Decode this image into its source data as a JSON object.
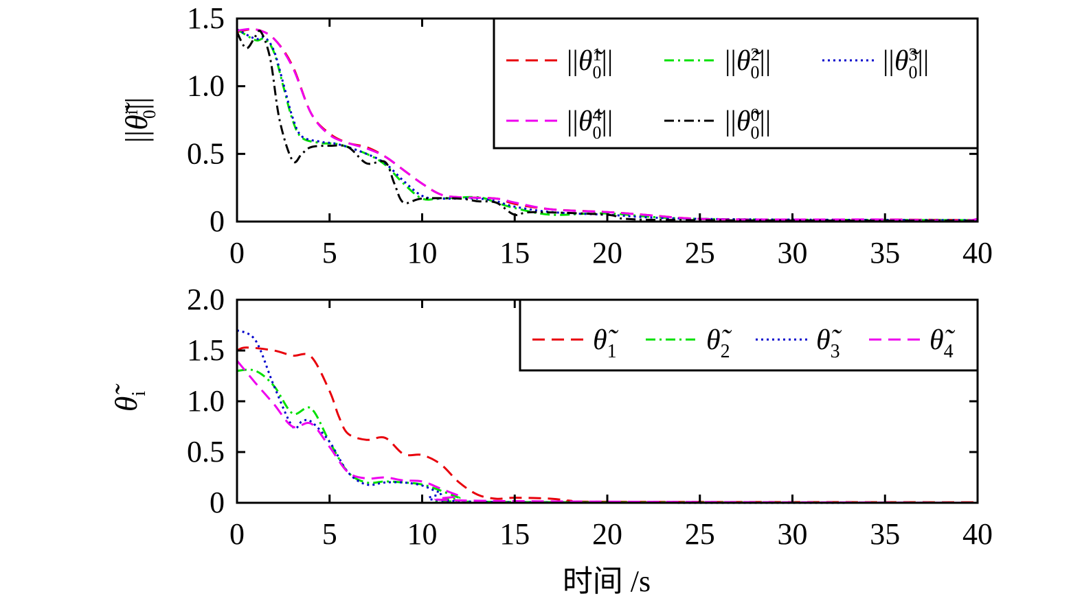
{
  "chart_data": [
    {
      "type": "line",
      "ylabel": {
        "base": "θ̃",
        "sup": "i",
        "sub": "0",
        "wrap": "||"
      },
      "xlabel": "",
      "xlim": [
        0,
        40
      ],
      "ylim": [
        0,
        1.5
      ],
      "xticks": [
        "0",
        "5",
        "10",
        "15",
        "20",
        "25",
        "30",
        "35",
        "40"
      ],
      "xtick_values": [
        0,
        5,
        10,
        15,
        20,
        25,
        30,
        35,
        40
      ],
      "yticks": [
        "0",
        "0.5",
        "1.0",
        "1.5"
      ],
      "ytick_values": [
        0,
        0.5,
        1.0,
        1.5
      ],
      "legend_position": "top-right",
      "series": [
        {
          "name": "||θ̃01||",
          "label": {
            "base": "θ̃",
            "sup": "1",
            "sub": "0",
            "wrap": "||"
          },
          "color": "#e8000b",
          "style": "dashed",
          "x": [
            0,
            1,
            2,
            3,
            4,
            5,
            6,
            7,
            8,
            9,
            10,
            11,
            12,
            14,
            15,
            17,
            20,
            22,
            25,
            30,
            35,
            40
          ],
          "y": [
            1.4,
            1.42,
            1.35,
            1.15,
            0.8,
            0.65,
            0.58,
            0.55,
            0.48,
            0.38,
            0.28,
            0.2,
            0.18,
            0.17,
            0.13,
            0.09,
            0.07,
            0.05,
            0.02,
            0.015,
            0.015,
            0.01
          ]
        },
        {
          "name": "||θ̃02||",
          "label": {
            "base": "θ̃",
            "sup": "2",
            "sub": "0",
            "wrap": "||"
          },
          "color": "#00e000",
          "style": "dashdot",
          "x": [
            0,
            1,
            1.5,
            2,
            2.5,
            3,
            3.5,
            4.5,
            5.5,
            7,
            8,
            9,
            10,
            11,
            13,
            14,
            15,
            17,
            20,
            25,
            40
          ],
          "y": [
            1.42,
            1.34,
            1.35,
            1.25,
            1.0,
            0.75,
            0.62,
            0.58,
            0.57,
            0.5,
            0.42,
            0.28,
            0.17,
            0.17,
            0.18,
            0.14,
            0.1,
            0.05,
            0.06,
            0.02,
            0.01
          ]
        },
        {
          "name": "||θ̃03||",
          "label": {
            "base": "θ̃",
            "sup": "3",
            "sub": "0",
            "wrap": "||"
          },
          "color": "#0000cc",
          "style": "dotted",
          "x": [
            0,
            1,
            1.5,
            2,
            2.5,
            3,
            3.5,
            4.5,
            5.5,
            7,
            8,
            9,
            10,
            11,
            13,
            14,
            15,
            17,
            20,
            25,
            40
          ],
          "y": [
            1.42,
            1.35,
            1.36,
            1.26,
            1.02,
            0.77,
            0.63,
            0.59,
            0.57,
            0.5,
            0.43,
            0.3,
            0.19,
            0.17,
            0.17,
            0.15,
            0.11,
            0.07,
            0.05,
            0.02,
            0.01
          ]
        },
        {
          "name": "||θ̃04||",
          "label": {
            "base": "θ̃",
            "sup": "4",
            "sub": "0",
            "wrap": "||"
          },
          "color": "#ee00ee",
          "style": "dashed",
          "x": [
            0,
            1,
            2,
            3,
            4,
            5,
            6,
            7,
            8,
            9,
            10,
            11,
            12,
            14,
            15,
            17,
            20,
            22,
            25,
            30,
            35,
            39,
            40
          ],
          "y": [
            1.41,
            1.42,
            1.35,
            1.14,
            0.8,
            0.64,
            0.58,
            0.54,
            0.48,
            0.38,
            0.28,
            0.2,
            0.18,
            0.17,
            0.14,
            0.09,
            0.07,
            0.05,
            0.02,
            0.015,
            0.015,
            0.005,
            0.02
          ]
        },
        {
          "name": "||θ̃00||",
          "label": {
            "base": "θ̃",
            "sup": "0",
            "sub": "0",
            "wrap": "||"
          },
          "color": "#000000",
          "style": "dashdot",
          "x": [
            0,
            0.5,
            1,
            1.3,
            1.8,
            2.3,
            3,
            3.5,
            4,
            5,
            6,
            7,
            8,
            8.5,
            9,
            10,
            12,
            13,
            14,
            15,
            16,
            20,
            21,
            25,
            40
          ],
          "y": [
            1.4,
            1.28,
            1.37,
            1.4,
            1.2,
            0.75,
            0.45,
            0.5,
            0.55,
            0.56,
            0.55,
            0.43,
            0.44,
            0.28,
            0.14,
            0.17,
            0.17,
            0.15,
            0.14,
            0.05,
            0.07,
            0.05,
            0.02,
            0.01,
            0.005
          ]
        }
      ]
    },
    {
      "type": "line",
      "ylabel": {
        "base": "θ̃",
        "sup": "",
        "sub": "i",
        "wrap": ""
      },
      "xlabel": "时间 /s",
      "xlim": [
        0,
        40
      ],
      "ylim": [
        0,
        2.0
      ],
      "xticks": [
        "0",
        "5",
        "10",
        "15",
        "20",
        "25",
        "30",
        "35",
        "40"
      ],
      "xtick_values": [
        0,
        5,
        10,
        15,
        20,
        25,
        30,
        35,
        40
      ],
      "yticks": [
        "0",
        "0.5",
        "1.0",
        "1.5",
        "2.0"
      ],
      "ytick_values": [
        0,
        0.5,
        1.0,
        1.5,
        2.0
      ],
      "legend_position": "top-right",
      "series": [
        {
          "name": "θ̃1",
          "label": {
            "base": "θ̃",
            "sup": "",
            "sub": "1",
            "wrap": ""
          },
          "color": "#e8000b",
          "style": "dashed",
          "x": [
            0,
            0.5,
            2,
            3,
            4,
            5,
            5.5,
            6,
            7,
            8,
            9,
            10,
            11,
            12,
            13,
            14,
            15,
            17,
            18,
            20,
            40
          ],
          "y": [
            1.5,
            1.53,
            1.5,
            1.45,
            1.44,
            1.1,
            0.85,
            0.68,
            0.62,
            0.64,
            0.48,
            0.47,
            0.38,
            0.2,
            0.08,
            0.04,
            0.05,
            0.04,
            0.02,
            0.01,
            0.005
          ]
        },
        {
          "name": "θ̃2",
          "label": {
            "base": "θ̃",
            "sup": "",
            "sub": "2",
            "wrap": ""
          },
          "color": "#00e000",
          "style": "dashdot",
          "x": [
            0,
            1,
            2,
            3,
            4,
            5,
            6,
            7,
            8,
            9,
            10,
            11,
            12,
            13,
            40
          ],
          "y": [
            1.3,
            1.3,
            1.15,
            0.88,
            0.93,
            0.6,
            0.3,
            0.2,
            0.21,
            0.2,
            0.18,
            0.12,
            0.05,
            0.01,
            0
          ]
        },
        {
          "name": "θ̃3",
          "label": {
            "base": "θ̃",
            "sup": "",
            "sub": "3",
            "wrap": ""
          },
          "color": "#0000cc",
          "style": "dotted",
          "x": [
            0,
            1,
            2,
            3,
            3.5,
            4,
            5,
            6,
            7,
            8,
            9,
            10,
            11,
            13,
            40
          ],
          "y": [
            1.7,
            1.6,
            1.15,
            0.75,
            0.8,
            0.8,
            0.6,
            0.3,
            0.18,
            0.2,
            0.2,
            0.17,
            0.1,
            0.01,
            0
          ]
        },
        {
          "name": "θ̃4",
          "label": {
            "base": "θ̃",
            "sup": "",
            "sub": "4",
            "wrap": ""
          },
          "color": "#ee00ee",
          "style": "dashed",
          "x": [
            0,
            1,
            2,
            3,
            4,
            5,
            6,
            7,
            8,
            9,
            10,
            11,
            12,
            13,
            40
          ],
          "y": [
            1.4,
            1.18,
            0.97,
            0.75,
            0.78,
            0.55,
            0.3,
            0.24,
            0.25,
            0.22,
            0.21,
            0.14,
            0.07,
            0.02,
            0
          ]
        }
      ]
    }
  ]
}
